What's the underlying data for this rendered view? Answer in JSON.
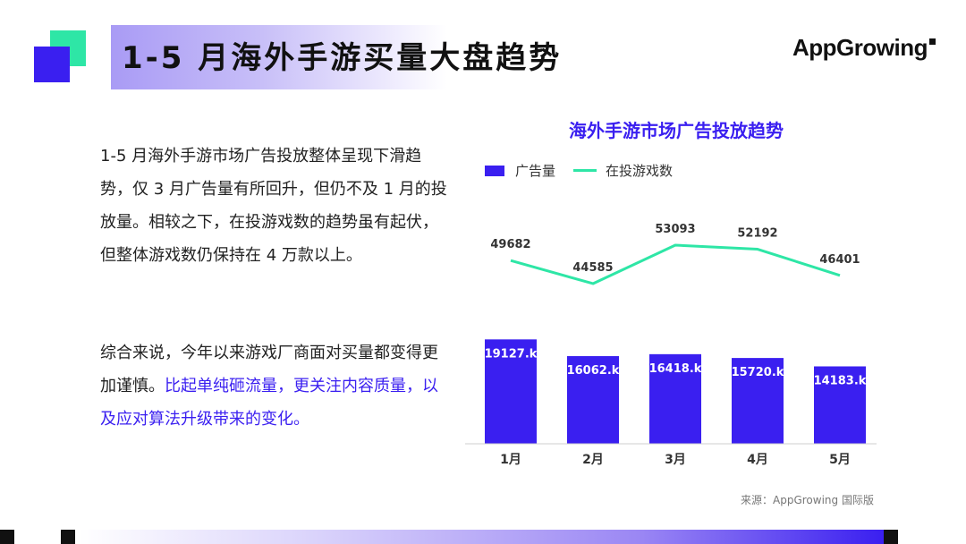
{
  "header": {
    "title": "1-5 月海外手游买量大盘趋势"
  },
  "logo": {
    "text": "AppGrowing"
  },
  "body": {
    "paragraph1": "1-5 月海外手游市场广告投放整体呈现下滑趋势，仅 3 月广告量有所回升，但仍不及 1 月的投放量。相较之下，在投游戏数的趋势虽有起伏，但整体游戏数仍保持在 4 万款以上。",
    "paragraph2_plain": "综合来说，今年以来游戏厂商面对买量都变得更加谨慎。",
    "paragraph2_highlight": "比起单纯砸流量，更关注内容质量，以及应对算法升级带来的变化。"
  },
  "chart_data": {
    "type": "bar",
    "title": "海外手游市场广告投放趋势",
    "categories": [
      "1月",
      "2月",
      "3月",
      "4月",
      "5月"
    ],
    "series": [
      {
        "name": "广告量",
        "type": "bar",
        "values": [
          19127,
          16062,
          16418,
          15720,
          14183
        ],
        "labels": [
          "19127.k",
          "16062.k",
          "16418.k",
          "15720.k",
          "14183.k"
        ],
        "color": "#3a1ff0"
      },
      {
        "name": "在投游戏数",
        "type": "line",
        "values": [
          49682,
          44585,
          53093,
          52192,
          46401
        ],
        "labels": [
          "49682",
          "44585",
          "53093",
          "52192",
          "46401"
        ],
        "color": "#2ee6a6"
      }
    ],
    "legend_position": "top-left",
    "grid": false
  },
  "source": {
    "text": "来源：AppGrowing 国际版"
  }
}
